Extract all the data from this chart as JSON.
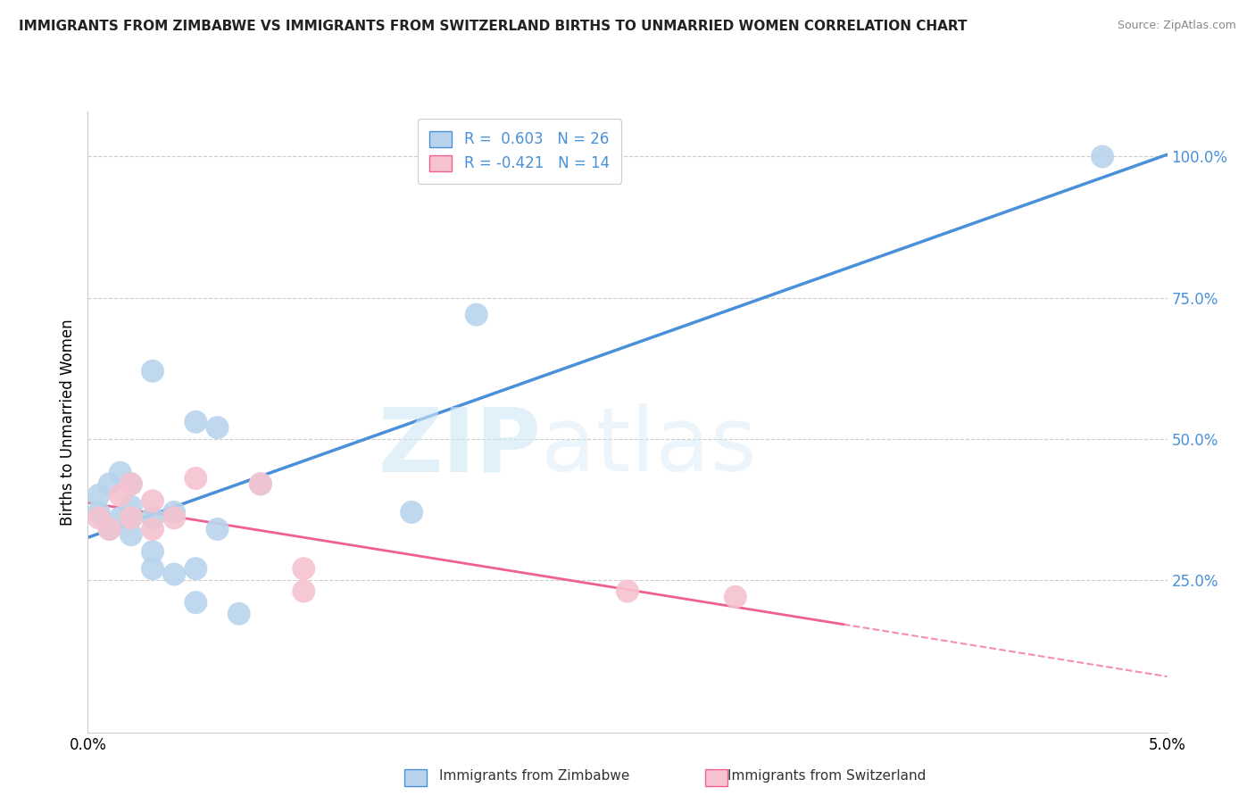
{
  "title": "IMMIGRANTS FROM ZIMBABWE VS IMMIGRANTS FROM SWITZERLAND BIRTHS TO UNMARRIED WOMEN CORRELATION CHART",
  "source": "Source: ZipAtlas.com",
  "ylabel": "Births to Unmarried Women",
  "y_ticks": [
    0.25,
    0.5,
    0.75,
    1.0
  ],
  "y_tick_labels": [
    "25.0%",
    "50.0%",
    "75.0%",
    "100.0%"
  ],
  "xlim": [
    0.0,
    0.05
  ],
  "ylim": [
    -0.02,
    1.08
  ],
  "legend1_r": "0.603",
  "legend1_n": "26",
  "legend2_r": "-0.421",
  "legend2_n": "14",
  "legend1_label": "Immigrants from Zimbabwe",
  "legend2_label": "Immigrants from Switzerland",
  "zim_color": "#b8d4ec",
  "swi_color": "#f5c2d0",
  "zim_line_color": "#4a90d9",
  "swi_line_color": "#f06090",
  "watermark_zip": "ZIP",
  "watermark_atlas": "atlas",
  "zim_points_x": [
    0.0005,
    0.0005,
    0.001,
    0.001,
    0.0015,
    0.0015,
    0.002,
    0.002,
    0.002,
    0.002,
    0.003,
    0.003,
    0.003,
    0.003,
    0.004,
    0.004,
    0.005,
    0.005,
    0.005,
    0.006,
    0.006,
    0.007,
    0.008,
    0.015,
    0.018,
    0.047
  ],
  "zim_points_y": [
    0.37,
    0.4,
    0.34,
    0.42,
    0.36,
    0.44,
    0.33,
    0.36,
    0.38,
    0.42,
    0.27,
    0.3,
    0.36,
    0.62,
    0.26,
    0.37,
    0.21,
    0.27,
    0.53,
    0.34,
    0.52,
    0.19,
    0.42,
    0.37,
    0.72,
    1.0
  ],
  "swi_points_x": [
    0.0005,
    0.001,
    0.0015,
    0.002,
    0.002,
    0.003,
    0.003,
    0.004,
    0.005,
    0.008,
    0.01,
    0.01,
    0.025,
    0.03
  ],
  "swi_points_y": [
    0.36,
    0.34,
    0.4,
    0.36,
    0.42,
    0.34,
    0.39,
    0.36,
    0.43,
    0.42,
    0.23,
    0.27,
    0.23,
    0.22
  ],
  "swi_line_solid_end": 0.035,
  "swi_line_dash_start": 0.035
}
